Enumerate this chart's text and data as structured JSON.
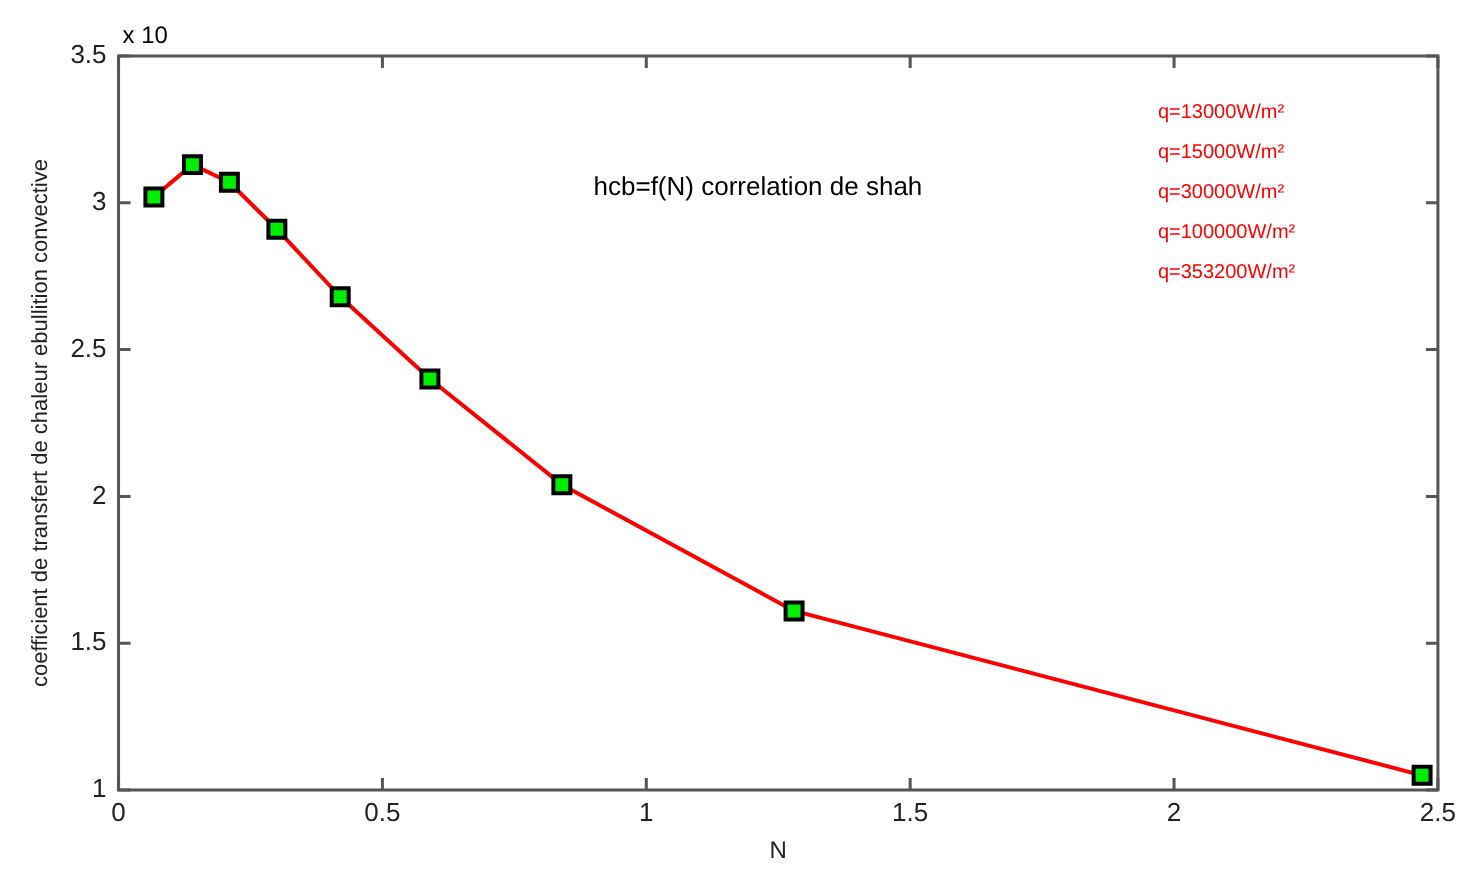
{
  "chart_data": {
    "type": "line",
    "xlabel": "N",
    "ylabel": "coefficient de transfert de chaleur ebullition convective",
    "x": [
      0.067,
      0.14,
      0.21,
      0.3,
      0.42,
      0.59,
      0.84,
      1.28,
      2.47
    ],
    "series": [
      {
        "color": "#ff0000",
        "values": [
          3.02,
          3.13,
          3.07,
          2.91,
          2.68,
          2.4,
          2.04,
          1.61,
          1.05
        ]
      }
    ],
    "xlim": [
      0,
      2.5
    ],
    "xticks": [
      0,
      0.5,
      1,
      1.5,
      2,
      2.5
    ],
    "ylim": [
      1,
      3.5
    ],
    "yticks": [
      1,
      1.5,
      2,
      2.5,
      3,
      3.5
    ],
    "grid": false,
    "legend": false,
    "marker": "square",
    "line_style": "solid",
    "annotations": [
      "x 10",
      "hcb=f(N) correlation de shah",
      "q=13000W/m²",
      "q=15000W/m²",
      "q=30000W/m²",
      "q=100000W/m²",
      "q=353200W/m²"
    ]
  }
}
